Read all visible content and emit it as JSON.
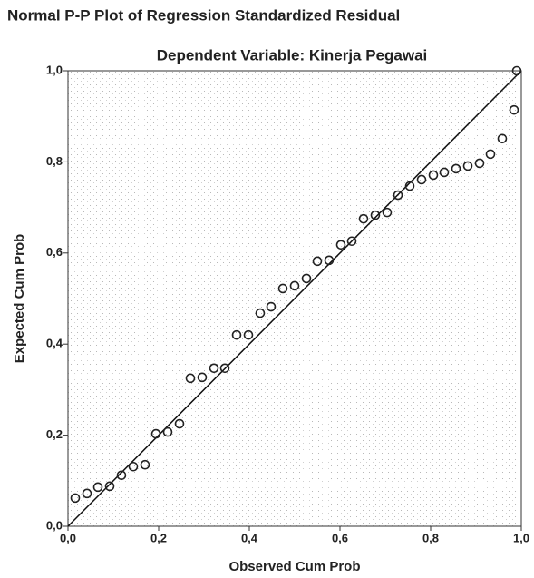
{
  "chart_data": {
    "type": "scatter",
    "title": "Normal P-P Plot of Regression Standardized Residual",
    "subtitle": "Dependent Variable: Kinerja Pegawai",
    "x_label": "Observed Cum Prob",
    "y_label": "Expected Cum Prob",
    "x": [
      0.016,
      0.042,
      0.066,
      0.092,
      0.118,
      0.144,
      0.17,
      0.194,
      0.22,
      0.246,
      0.27,
      0.296,
      0.322,
      0.346,
      0.372,
      0.398,
      0.424,
      0.448,
      0.474,
      0.5,
      0.526,
      0.55,
      0.576,
      0.602,
      0.626,
      0.652,
      0.678,
      0.704,
      0.728,
      0.754,
      0.78,
      0.806,
      0.83,
      0.856,
      0.882,
      0.908,
      0.932,
      0.958,
      0.984,
      0.99
    ],
    "values": [
      0.062,
      0.072,
      0.086,
      0.088,
      0.112,
      0.131,
      0.135,
      0.203,
      0.207,
      0.225,
      0.325,
      0.327,
      0.347,
      0.347,
      0.42,
      0.42,
      0.468,
      0.482,
      0.522,
      0.528,
      0.544,
      0.582,
      0.584,
      0.618,
      0.626,
      0.675,
      0.683,
      0.689,
      0.727,
      0.747,
      0.761,
      0.771,
      0.777,
      0.785,
      0.791,
      0.797,
      0.817,
      0.851,
      0.914,
      1.0
    ],
    "color": "#222222",
    "xlim": [
      0,
      1
    ],
    "ylim": [
      0,
      1
    ],
    "xticks": [
      {
        "value": 0,
        "label": "0,0"
      },
      {
        "value": 0.2,
        "label": "0,2"
      },
      {
        "value": 0.4,
        "label": "0,4"
      },
      {
        "value": 0.6,
        "label": "0,6"
      },
      {
        "value": 0.8,
        "label": "0,8"
      },
      {
        "value": 1,
        "label": "1,0"
      }
    ],
    "yticks": [
      {
        "value": 0,
        "label": "0,0"
      },
      {
        "value": 0.2,
        "label": "0,2"
      },
      {
        "value": 0.4,
        "label": "0,4"
      },
      {
        "value": 0.6,
        "label": "0,6"
      },
      {
        "value": 0.8,
        "label": "0,8"
      },
      {
        "value": 1,
        "label": "1,0"
      }
    ],
    "grid": false
  }
}
